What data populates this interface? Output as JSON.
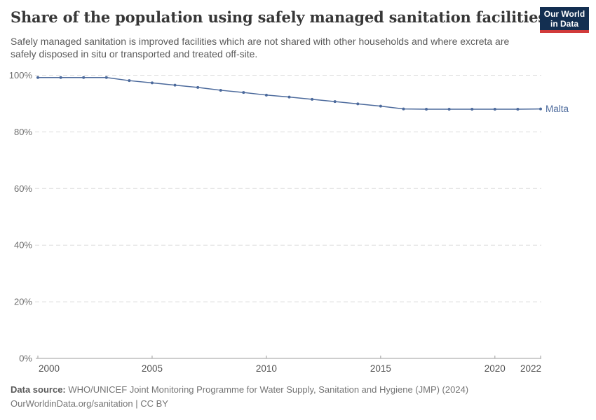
{
  "header": {
    "logo": {
      "line1": "Our World",
      "line2": "in Data",
      "bg_color": "#132f51",
      "accent_color": "#d13b3b"
    }
  },
  "chart_data": {
    "type": "line",
    "title": "Share of the population using safely managed sanitation facilities",
    "subtitle": "Safely managed sanitation is improved facilities which are not shared with other households and where excreta are safely disposed in situ or transported and treated off-site.",
    "x": [
      2000,
      2001,
      2002,
      2003,
      2004,
      2005,
      2006,
      2007,
      2008,
      2009,
      2010,
      2011,
      2012,
      2013,
      2014,
      2015,
      2016,
      2017,
      2018,
      2019,
      2020,
      2021,
      2022
    ],
    "series": [
      {
        "name": "Malta",
        "color": "#4c6a9c",
        "values": [
          99.2,
          99.2,
          99.2,
          99.2,
          98.1,
          97.3,
          96.5,
          95.7,
          94.7,
          93.9,
          93.0,
          92.3,
          91.5,
          90.7,
          89.9,
          89.1,
          88.1,
          88.0,
          88.0,
          88.0,
          88.0,
          88.0,
          88.1
        ]
      }
    ],
    "xlabel": "",
    "ylabel": "",
    "ylim": [
      0,
      100
    ],
    "xlim": [
      2000,
      2022
    ],
    "yticks": [
      {
        "v": 0,
        "label": "0%"
      },
      {
        "v": 20,
        "label": "20%"
      },
      {
        "v": 40,
        "label": "40%"
      },
      {
        "v": 60,
        "label": "60%"
      },
      {
        "v": 80,
        "label": "80%"
      },
      {
        "v": 100,
        "label": "100%"
      }
    ],
    "xticks": [
      {
        "v": 2000,
        "label": "2000"
      },
      {
        "v": 2005,
        "label": "2005"
      },
      {
        "v": 2010,
        "label": "2010"
      },
      {
        "v": 2015,
        "label": "2015"
      },
      {
        "v": 2020,
        "label": "2020"
      },
      {
        "v": 2022,
        "label": "2022"
      }
    ],
    "grid": "horizontal-dashed",
    "legend_position": "end-of-line-label",
    "grid_color": "#dcdcdc",
    "axis_color": "#9c9c9c",
    "ytick_label_color": "#6e6e6e",
    "xtick_label_color": "#525252"
  },
  "footer": {
    "source_label": "Data source:",
    "source_text": "WHO/UNICEF Joint Monitoring Programme for Water Supply, Sanitation and Hygiene (JMP) (2024)",
    "license_text": "OurWorldinData.org/sanitation | CC BY"
  }
}
